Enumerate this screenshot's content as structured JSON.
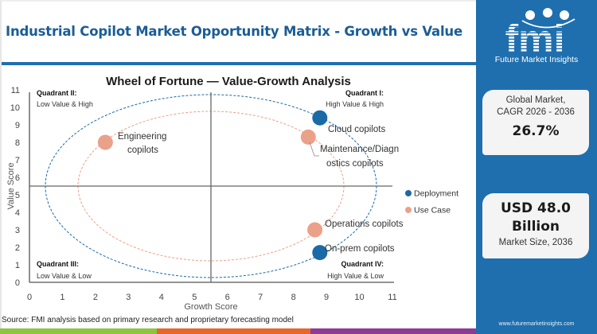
{
  "header": {
    "title": "Industrial Copilot Market Opportunity Matrix - Growth vs Value"
  },
  "sidebar": {
    "logo_letters": "fmi",
    "logo_text": "Future Market Insights",
    "card_cagr": {
      "label_line1": "Global Market,",
      "label_line2": "CAGR 2026 - 2036",
      "value": "26.7%"
    },
    "card_size": {
      "value_line1": "USD 48.0",
      "value_line2": "Billion",
      "label": "Market Size, 2036"
    },
    "website": "www.futuremarketinsights.com"
  },
  "footer": {
    "source": "Source: FMI analysis based on primary research and proprietary forecasting model",
    "color_bar": [
      "#8cc63f",
      "#e8662a",
      "#8e3b97"
    ]
  },
  "colors": {
    "brand_blue": "#1f6fae",
    "deployment": "#1a6aa8",
    "use_case": "#eba08a",
    "title": "#1a5d96"
  },
  "chart_data": {
    "type": "scatter",
    "title": "Wheel of Fortune — Value-Growth Analysis",
    "xlabel": "Growth Score",
    "ylabel": "Value Score",
    "xlim": [
      0,
      11
    ],
    "ylim": [
      0,
      11
    ],
    "x_ticks": [
      0,
      1,
      2,
      3,
      4,
      5,
      6,
      7,
      8,
      9,
      10,
      11
    ],
    "y_ticks": [
      0,
      1,
      2,
      3,
      4,
      5,
      6,
      7,
      8,
      9,
      10,
      11
    ],
    "grid": false,
    "divider_x": 5.5,
    "divider_y": 5.5,
    "legend_position": "right",
    "legend": [
      {
        "name": "Deployment",
        "color": "#1a6aa8"
      },
      {
        "name": "Use Case",
        "color": "#eba08a"
      }
    ],
    "quadrants": [
      {
        "name": "Quadrant I:",
        "desc": "High Value & High",
        "position": "top-right"
      },
      {
        "name": "Quadrant II:",
        "desc": "Low Value & High",
        "position": "top-left"
      },
      {
        "name": "Quadrant III:",
        "desc": "Low Value & Low",
        "position": "bottom-left"
      },
      {
        "name": "Quadrant IV:",
        "desc": "High Value & Low",
        "position": "bottom-right"
      }
    ],
    "series": [
      {
        "name": "Deployment",
        "points": [
          {
            "label": "Cloud copilots",
            "x": 8.8,
            "y": 9.4
          },
          {
            "label": "On-prem copilots",
            "x": 8.8,
            "y": 1.7
          }
        ]
      },
      {
        "name": "Use Case",
        "points": [
          {
            "label": "Engineering copilots",
            "x": 2.3,
            "y": 8.0
          },
          {
            "label": "Maintenance/Diagnostics copilots",
            "x": 8.45,
            "y": 8.3
          },
          {
            "label": "Operations copilots",
            "x": 8.65,
            "y": 3.0
          }
        ]
      }
    ]
  }
}
